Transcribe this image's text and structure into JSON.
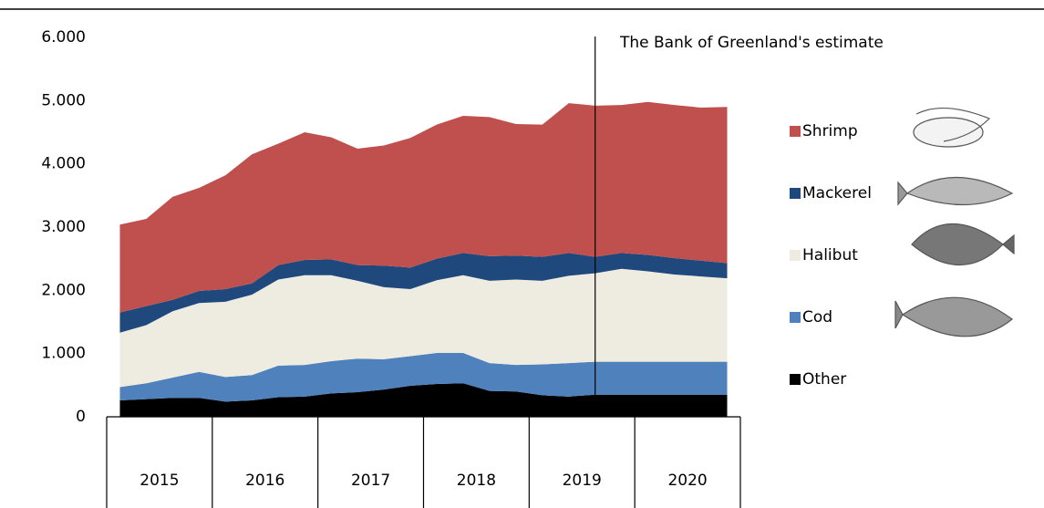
{
  "chart_data": {
    "type": "stacked-area",
    "categories": [
      null,
      null,
      null,
      null,
      null,
      null,
      null,
      null,
      null,
      null,
      null,
      null,
      null,
      null,
      null,
      null,
      null,
      null,
      null,
      null,
      null,
      null,
      null,
      null
    ],
    "year_groups": [
      "2015",
      "2016",
      "2017",
      "2018",
      "2019",
      "2020"
    ],
    "series": [
      {
        "name": "Other",
        "color": "#000000",
        "values": [
          260,
          280,
          300,
          300,
          240,
          260,
          310,
          320,
          370,
          390,
          430,
          490,
          520,
          530,
          410,
          400,
          340,
          320,
          350,
          350,
          350,
          350,
          350,
          350
        ]
      },
      {
        "name": "Cod",
        "color": "#4f81bd",
        "values": [
          210,
          250,
          320,
          410,
          390,
          400,
          500,
          500,
          510,
          530,
          480,
          470,
          490,
          480,
          440,
          420,
          490,
          530,
          520,
          520,
          520,
          520,
          520,
          520
        ]
      },
      {
        "name": "Halibut",
        "color": "#eeece1",
        "values": [
          860,
          920,
          1050,
          1090,
          1190,
          1270,
          1360,
          1420,
          1360,
          1230,
          1140,
          1060,
          1150,
          1230,
          1300,
          1350,
          1320,
          1380,
          1400,
          1470,
          1430,
          1380,
          1350,
          1320
        ]
      },
      {
        "name": "Mackerel",
        "color": "#1f497d",
        "values": [
          320,
          300,
          180,
          190,
          200,
          180,
          230,
          240,
          250,
          250,
          340,
          340,
          340,
          350,
          390,
          380,
          380,
          360,
          260,
          250,
          260,
          260,
          250,
          240
        ]
      },
      {
        "name": "Shrimp",
        "color": "#c0504d",
        "values": [
          1390,
          1380,
          1630,
          1630,
          1800,
          2040,
          1920,
          2020,
          1930,
          1840,
          1900,
          2050,
          2120,
          2170,
          2200,
          2080,
          2090,
          2370,
          2390,
          2340,
          2420,
          2420,
          2420,
          2470
        ]
      }
    ],
    "ylim": [
      0,
      6000
    ],
    "yticks": [
      0,
      {
        "value": 1000,
        "label": "1.000"
      },
      {
        "value": 2000,
        "label": "2.000"
      },
      {
        "value": 3000,
        "label": "3.000"
      },
      {
        "value": 4000,
        "label": "4.000"
      },
      {
        "value": 5000,
        "label": "5.000"
      },
      {
        "value": 6000,
        "label": "6.000"
      }
    ],
    "annotation": {
      "text": "The Bank of Greenland's estimate",
      "category_index": 18
    }
  }
}
